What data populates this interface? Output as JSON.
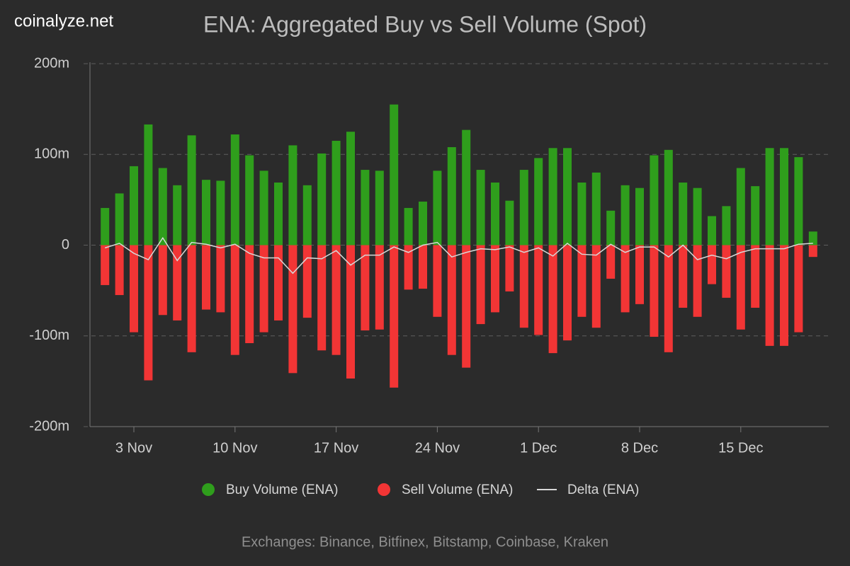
{
  "watermark": "coinalyze.net",
  "footer": "Exchanges: Binance, Bitfinex, Bitstamp, Coinbase, Kraken",
  "chart_data": {
    "type": "bar",
    "title": "ENA: Aggregated Buy vs Sell Volume (Spot)",
    "categories": [
      null,
      null,
      "3 Nov",
      null,
      null,
      null,
      null,
      null,
      null,
      "10 Nov",
      null,
      null,
      null,
      null,
      null,
      null,
      "17 Nov",
      null,
      null,
      null,
      null,
      null,
      null,
      "24 Nov",
      null,
      null,
      null,
      null,
      null,
      null,
      "1 Dec",
      null,
      null,
      null,
      null,
      null,
      null,
      "8 Dec",
      null,
      null,
      null,
      null,
      null,
      null,
      "15 Dec",
      null,
      null,
      null,
      null,
      null
    ],
    "ylim": [
      -200,
      200
    ],
    "yticks": [
      {
        "value": -200,
        "label": "-200m"
      },
      {
        "value": -100,
        "label": "-100m"
      },
      0,
      {
        "value": 100,
        "label": "100m"
      },
      {
        "value": 200,
        "label": "200m"
      }
    ],
    "grid": true,
    "series": [
      {
        "name": "Buy Volume (ENA)",
        "type": "bar",
        "color": "#2f9e1c",
        "values": [
          41,
          57,
          87,
          133,
          85,
          66,
          121,
          72,
          71,
          122,
          99,
          82,
          69,
          110,
          66,
          101,
          115,
          125,
          83,
          82,
          155,
          41,
          48,
          82,
          108,
          127,
          83,
          69,
          49,
          83,
          96,
          107,
          107,
          69,
          80,
          38,
          66,
          63,
          99,
          105,
          69,
          63,
          32,
          43,
          85,
          65,
          107,
          107,
          97,
          15
        ]
      },
      {
        "name": "Sell Volume (ENA)",
        "type": "bar",
        "color": "#f23535",
        "values": [
          -44,
          -55,
          -96,
          -149,
          -77,
          -83,
          -118,
          -71,
          -74,
          -121,
          -108,
          -96,
          -83,
          -141,
          -80,
          -116,
          -121,
          -147,
          -94,
          -93,
          -157,
          -49,
          -48,
          -79,
          -121,
          -135,
          -87,
          -74,
          -51,
          -91,
          -99,
          -119,
          -105,
          -79,
          -91,
          -37,
          -74,
          -65,
          -101,
          -118,
          -69,
          -79,
          -43,
          -58,
          -93,
          -69,
          -111,
          -111,
          -96,
          -13
        ]
      },
      {
        "name": "Delta (ENA)",
        "type": "line",
        "color": "#d8d8d8",
        "values": [
          -3,
          2,
          -9,
          -16,
          8,
          -17,
          3,
          1,
          -3,
          1,
          -9,
          -14,
          -14,
          -31,
          -14,
          -15,
          -6,
          -22,
          -11,
          -11,
          -2,
          -8,
          0,
          3,
          -13,
          -8,
          -4,
          -5,
          -2,
          -8,
          -3,
          -12,
          2,
          -10,
          -11,
          1,
          -8,
          -2,
          -2,
          -13,
          0,
          -16,
          -11,
          -15,
          -8,
          -4,
          -4,
          -4,
          1,
          2
        ]
      }
    ]
  }
}
